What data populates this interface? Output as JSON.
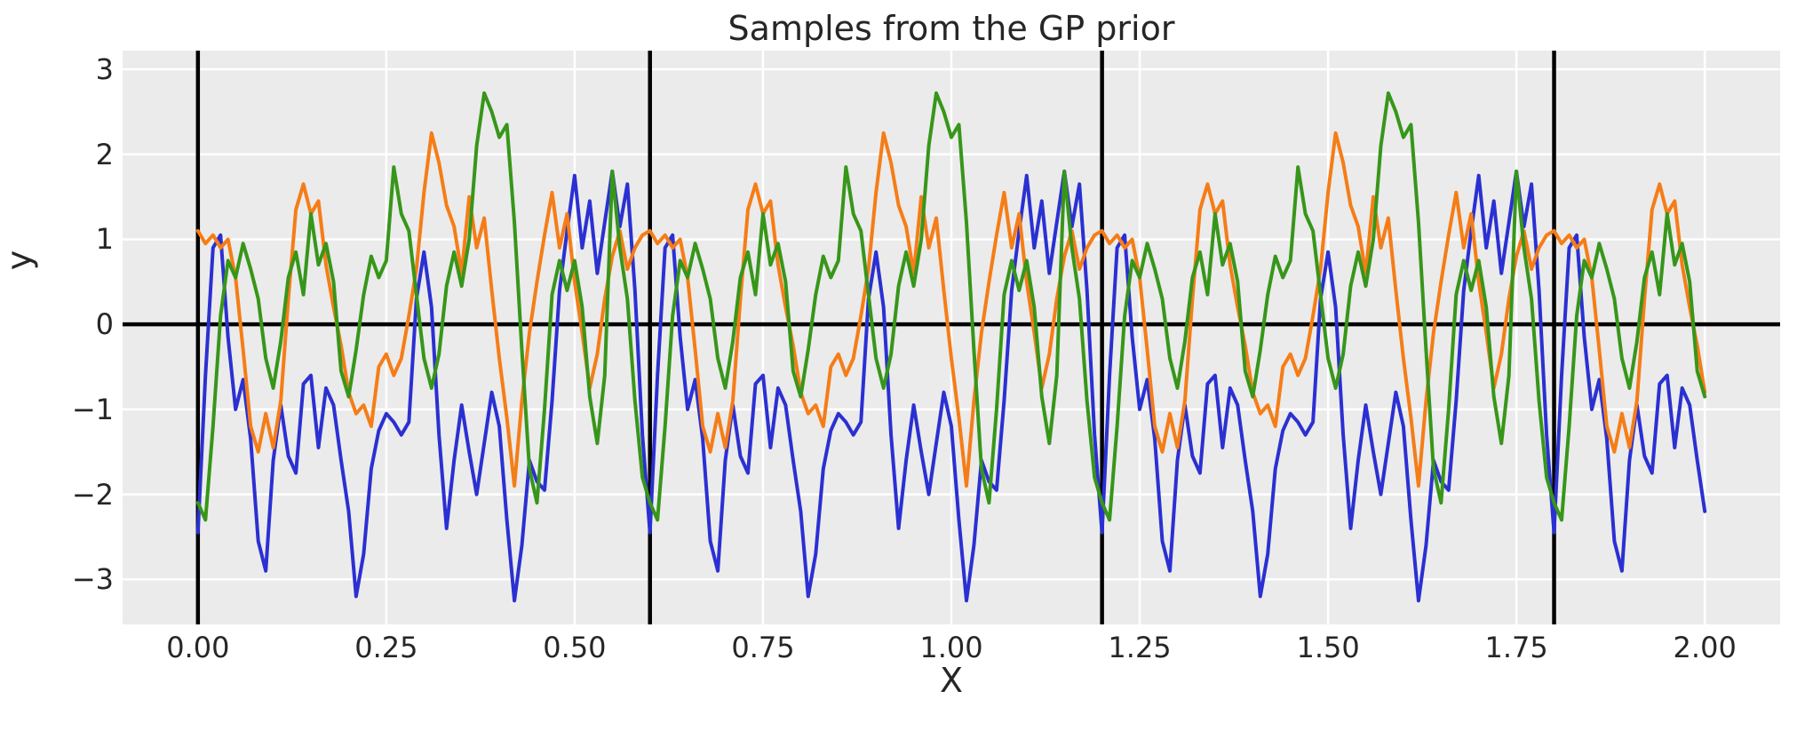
{
  "figure": {
    "title": "Samples from the GP prior",
    "xlabel": "X",
    "ylabel": "y",
    "x_tick_labels": [
      "0.00",
      "0.25",
      "0.50",
      "0.75",
      "1.00",
      "1.25",
      "1.50",
      "1.75",
      "2.00"
    ],
    "y_tick_labels": [
      "3",
      "2",
      "1",
      "0",
      "−1",
      "−2",
      "−3"
    ],
    "axes_background": "#ebebeb",
    "gridline_color": "#ffffff",
    "text_color": "#262626",
    "reference_line_color": "#000000"
  },
  "chart_data": {
    "type": "line",
    "title": "Samples from the GP prior",
    "xlabel": "X",
    "ylabel": "y",
    "grid": true,
    "legend": "none",
    "xlim": [
      -0.1,
      2.1
    ],
    "ylim": [
      -3.53,
      3.22
    ],
    "x_tick_values": [
      0,
      0.25,
      0.5,
      0.75,
      1.0,
      1.25,
      1.5,
      1.75,
      2.0
    ],
    "y_tick_values": [
      3,
      2,
      1,
      0,
      -1,
      -2,
      -3
    ],
    "horizontal_line_y": 0,
    "vertical_lines_x": [
      0.0,
      0.6,
      1.2,
      1.8
    ],
    "x_start": 0.0,
    "x_step": 0.01,
    "n_points": 201,
    "period": 0.6,
    "series": [
      {
        "name": "sample-1",
        "color": "#2b30d2",
        "period_values": [
          -2.45,
          -0.6,
          0.9,
          1.05,
          -0.15,
          -1.0,
          -0.65,
          -1.35,
          -2.55,
          -2.9,
          -1.6,
          -0.95,
          -1.55,
          -1.75,
          -0.7,
          -0.6,
          -1.45,
          -0.75,
          -0.95,
          -1.6,
          -2.2,
          -3.2,
          -2.7,
          -1.7,
          -1.25,
          -1.05,
          -1.15,
          -1.3,
          -1.15,
          0.3,
          0.85,
          0.2,
          -1.3,
          -2.4,
          -1.6,
          -0.95,
          -1.5,
          -2.0,
          -1.4,
          -0.8,
          -1.2,
          -2.3,
          -3.25,
          -2.6,
          -1.6,
          -1.85,
          -1.95,
          -0.9,
          0.4,
          1.1,
          1.75,
          0.9,
          1.45,
          0.6,
          1.2,
          1.8,
          1.15,
          1.65,
          0.4,
          -1.3
        ]
      },
      {
        "name": "sample-2",
        "color": "#f57d17",
        "period_values": [
          1.1,
          0.95,
          1.05,
          0.9,
          1.0,
          0.55,
          -0.3,
          -1.2,
          -1.5,
          -1.05,
          -1.45,
          -0.9,
          0.3,
          1.35,
          1.65,
          1.3,
          1.45,
          0.7,
          0.2,
          -0.25,
          -0.8,
          -1.05,
          -0.95,
          -1.2,
          -0.5,
          -0.35,
          -0.6,
          -0.4,
          0.1,
          0.65,
          1.55,
          2.25,
          1.9,
          1.4,
          1.15,
          0.6,
          1.5,
          0.9,
          1.25,
          0.4,
          -0.4,
          -1.1,
          -1.9,
          -0.9,
          -0.1,
          0.5,
          1.05,
          1.55,
          0.9,
          1.3,
          0.5,
          -0.1,
          -0.75,
          -0.35,
          0.3,
          0.8,
          1.1,
          0.65,
          0.9,
          1.05
        ]
      },
      {
        "name": "sample-3",
        "color": "#37961a",
        "period_values": [
          -2.1,
          -2.3,
          -1.2,
          0.1,
          0.75,
          0.55,
          0.95,
          0.65,
          0.3,
          -0.4,
          -0.75,
          -0.2,
          0.55,
          0.85,
          0.35,
          1.3,
          0.7,
          0.95,
          0.5,
          -0.55,
          -0.85,
          -0.3,
          0.35,
          0.8,
          0.55,
          0.75,
          1.85,
          1.3,
          1.1,
          0.35,
          -0.4,
          -0.75,
          -0.35,
          0.45,
          0.85,
          0.45,
          1.0,
          2.1,
          2.72,
          2.5,
          2.2,
          2.35,
          1.2,
          -0.3,
          -1.7,
          -2.1,
          -1.0,
          0.35,
          0.75,
          0.4,
          0.75,
          0.2,
          -0.85,
          -1.4,
          -0.6,
          1.8,
          0.9,
          0.3,
          -0.9,
          -1.8
        ]
      }
    ]
  }
}
